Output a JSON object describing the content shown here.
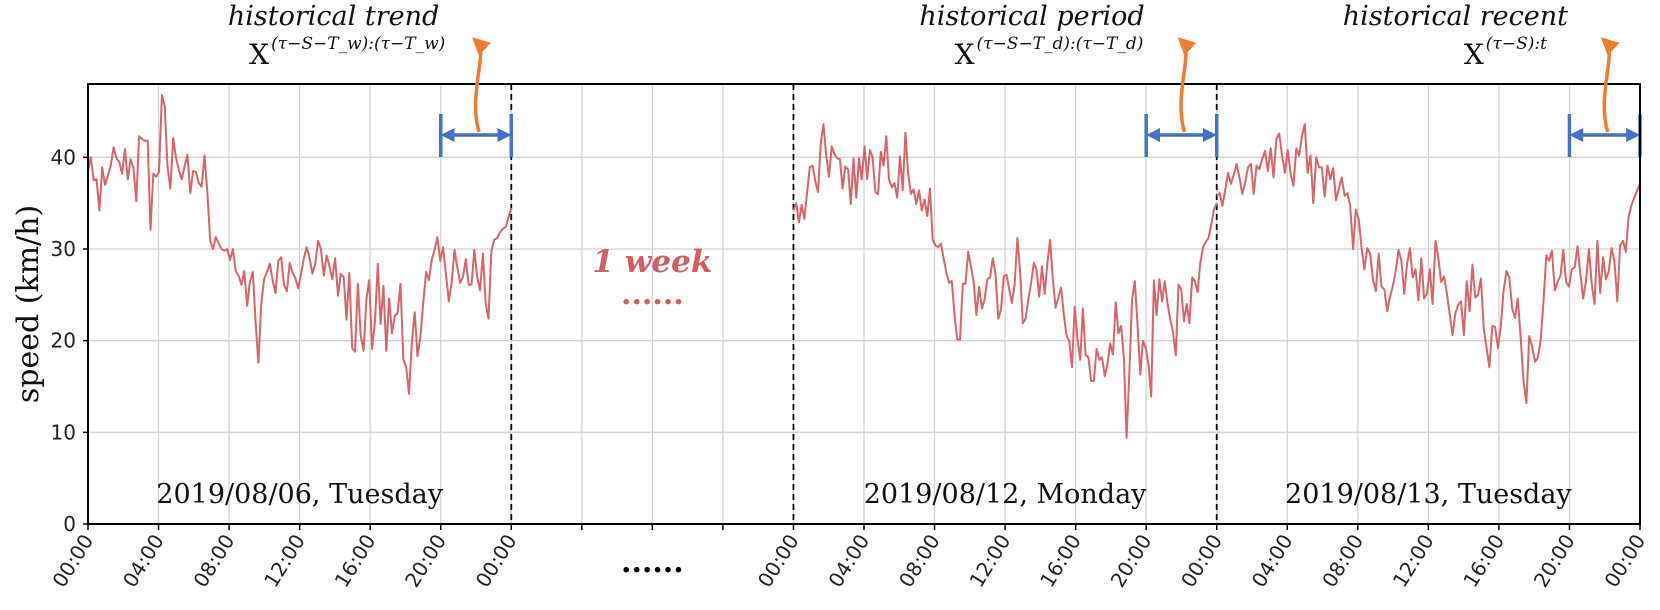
{
  "chart_data": {
    "type": "line",
    "ylabel": "speed (km/h)",
    "ylim": [
      0,
      48
    ],
    "yticks": [
      0,
      10,
      20,
      30,
      40
    ],
    "grid": true,
    "line_color": "#d9646a",
    "interval_color": "#4472c4",
    "arrow_color": "#ed7d31",
    "x_tick_labels": [
      "00:00",
      "04:00",
      "08:00",
      "12:00",
      "16:00",
      "20:00",
      "00:00",
      "",
      "",
      "",
      "00:00",
      "04:00",
      "08:00",
      "12:00",
      "16:00",
      "20:00",
      "00:00",
      "04:00",
      "08:00",
      "12:00",
      "16:00",
      "20:00",
      "00:00"
    ],
    "gap": {
      "label": "1 week",
      "dots": "......",
      "axis_dots": "......"
    },
    "days": [
      {
        "label": "2019/08/06, Tuesday",
        "series": [
          38.5,
          40.0,
          37.5,
          37.6,
          34.2,
          38.9,
          37.0,
          38.0,
          39.1,
          41.1,
          39.9,
          39.5,
          38.2,
          40.9,
          37.6,
          39.8,
          38.8,
          35.2,
          42.3,
          42.0,
          41.8,
          41.8,
          32.1,
          38.2,
          37.9,
          38.4,
          46.8,
          45.6,
          39.0,
          36.6,
          42.1,
          39.9,
          38.6,
          37.6,
          39.0,
          40.3,
          36.1,
          38.5,
          38.4,
          37.2,
          36.8,
          40.2,
          36.3,
          30.9,
          30.0,
          31.3,
          30.6,
          30.0,
          29.8,
          30.0,
          28.8,
          30.0,
          27.6,
          27.1,
          26.1,
          27.6,
          23.8,
          26.4,
          27.5,
          22.0,
          17.6,
          24.1,
          26.7,
          27.5,
          28.4,
          26.6,
          25.2,
          28.7,
          29.1,
          26.1,
          25.4,
          28.5,
          27.4,
          26.8,
          25.7,
          27.3,
          29.0,
          30.2,
          29.0,
          27.3,
          28.4,
          30.9,
          30.0,
          27.1,
          29.3,
          28.1,
          26.7,
          29.0,
          24.9,
          27.3,
          26.9,
          22.3,
          27.4,
          19.2,
          18.8,
          26.2,
          20.6,
          18.9,
          24.5,
          26.6,
          19.1,
          22.0,
          28.4,
          21.8,
          26.0,
          18.9,
          24.6,
          20.8,
          22.7,
          23.0,
          26.2,
          18.0,
          17.1,
          14.2,
          19.7,
          23.1,
          18.3,
          20.4,
          24.1,
          27.5,
          26.6,
          28.8,
          29.9,
          31.3,
          28.7,
          30.2,
          27.3,
          24.3,
          26.3,
          29.9,
          28.0,
          26.3,
          27.0,
          28.9,
          26.1,
          26.1,
          29.9,
          27.0,
          25.5,
          29.5,
          24.0,
          22.4,
          29.8,
          31.0,
          31.2,
          31.8,
          32.2,
          32.4,
          33.4,
          34.5
        ]
      },
      {
        "label": "2019/08/12, Monday",
        "series": [
          34.2,
          35.0,
          32.9,
          34.8,
          33.3,
          36.2,
          38.9,
          39.1,
          37.4,
          36.2,
          41.6,
          43.6,
          40.2,
          37.9,
          41.2,
          40.4,
          39.9,
          39.8,
          36.6,
          39.0,
          38.7,
          34.9,
          39.9,
          35.6,
          39.9,
          37.6,
          41.2,
          37.6,
          40.8,
          40.0,
          36.2,
          36.0,
          40.6,
          39.1,
          42.3,
          37.6,
          36.7,
          37.2,
          35.6,
          40.1,
          36.4,
          42.7,
          38.3,
          36.0,
          36.5,
          34.9,
          36.4,
          34.2,
          35.4,
          33.6,
          36.6,
          31.0,
          30.4,
          30.2,
          30.6,
          29.0,
          27.4,
          26.3,
          26.5,
          22.7,
          20.1,
          20.1,
          26.2,
          26.2,
          29.7,
          28.1,
          26.4,
          22.8,
          25.9,
          23.5,
          24.5,
          26.7,
          26.9,
          29.0,
          27.3,
          22.4,
          23.4,
          27.0,
          27.2,
          25.6,
          24.1,
          26.1,
          31.2,
          27.6,
          21.9,
          22.4,
          24.5,
          26.2,
          28.5,
          27.8,
          24.8,
          28.1,
          25.1,
          28.5,
          31.0,
          26.6,
          23.6,
          24.7,
          25.8,
          22.9,
          20.6,
          19.9,
          17.1,
          23.7,
          20.2,
          17.9,
          23.5,
          18.4,
          18.2,
          15.6,
          15.6,
          19.1,
          17.9,
          18.2,
          16.1,
          17.5,
          19.7,
          18.5,
          24.2,
          20.8,
          21.6,
          18.1,
          9.4,
          16.4,
          24.5,
          26.5,
          21.8,
          16.3,
          20.0,
          19.2,
          17.4,
          13.9,
          26.6,
          22.8,
          26.7,
          24.3,
          26.5,
          24.0,
          22.3,
          20.9,
          18.4,
          26.1,
          25.6,
          22.1,
          24.0,
          21.9,
          26.9,
          26.5,
          25.3,
          28.5,
          30.2,
          30.8,
          31.2,
          32.7,
          34.3,
          35.0
        ]
      },
      {
        "label": "2019/08/13, Tuesday",
        "series": [
          35.8,
          36.1,
          34.7,
          36.4,
          38.3,
          37.1,
          38.1,
          39.3,
          37.8,
          36.0,
          37.2,
          38.9,
          39.3,
          36.0,
          39.1,
          38.7,
          39.8,
          40.7,
          38.5,
          41.0,
          37.8,
          42.0,
          42.6,
          40.2,
          38.3,
          40.8,
          38.2,
          36.9,
          41.0,
          40.2,
          42.3,
          43.6,
          38.3,
          40.2,
          35.0,
          40.0,
          38.9,
          38.9,
          35.7,
          39.1,
          37.6,
          38.8,
          35.3,
          36.6,
          37.8,
          35.8,
          36.1,
          34.7,
          30.0,
          34.3,
          33.2,
          30.1,
          27.8,
          30.1,
          29.5,
          26.7,
          25.4,
          29.5,
          25.9,
          25.6,
          23.2,
          24.8,
          26.0,
          27.6,
          29.9,
          28.7,
          25.1,
          28.4,
          30.1,
          26.9,
          27.8,
          24.4,
          29.0,
          24.6,
          25.1,
          27.8,
          24.0,
          30.9,
          29.1,
          26.4,
          27.0,
          25.2,
          22.9,
          20.6,
          23.0,
          23.9,
          24.3,
          20.6,
          26.5,
          23.2,
          28.3,
          24.7,
          25.0,
          26.8,
          21.3,
          19.2,
          17.1,
          21.6,
          21.5,
          19.2,
          21.6,
          25.5,
          27.6,
          26.9,
          23.5,
          22.5,
          24.6,
          20.3,
          15.6,
          13.2,
          20.5,
          19.4,
          17.7,
          18.1,
          20.0,
          24.1,
          29.3,
          28.7,
          29.8,
          25.5,
          26.4,
          27.1,
          29.9,
          26.4,
          25.9,
          27.8,
          28.0,
          30.3,
          27.4,
          24.6,
          26.5,
          30.0,
          26.2,
          24.0,
          30.9,
          25.2,
          29.1,
          26.7,
          27.6,
          30.1,
          28.7,
          24.3,
          30.4,
          30.9,
          29.7,
          33.5,
          34.8,
          35.6,
          36.4,
          37.1
        ]
      }
    ],
    "annotations": [
      {
        "title": "historical trend",
        "symbol": "X",
        "superscript": "(τ−S−T_w):(τ−T_w)",
        "day": 0,
        "interval_hours": [
          20,
          24
        ]
      },
      {
        "title": "historical period",
        "symbol": "X",
        "superscript": "(τ−S−T_d):(τ−T_d)",
        "day": 1,
        "interval_hours": [
          20,
          24
        ]
      },
      {
        "title": "historical recent",
        "symbol": "X",
        "superscript": "(τ−S):t",
        "day": 2,
        "interval_hours": [
          20,
          24
        ]
      }
    ]
  }
}
